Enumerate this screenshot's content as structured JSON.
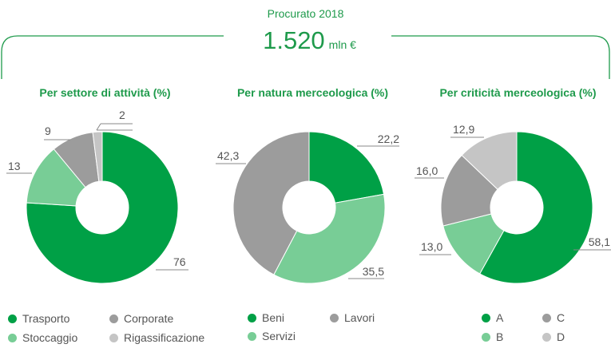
{
  "header": {
    "title": "Procurato 2018",
    "value": "1.520",
    "unit": "mln €"
  },
  "colors": {
    "accent": "#1e9a4b",
    "dark_green": "#00a046",
    "light_green": "#78cd96",
    "dark_gray": "#9c9c9c",
    "light_gray": "#c5c5c5"
  },
  "chart_data": [
    {
      "type": "pie",
      "title": "Per settore di attività (%)",
      "series": [
        {
          "name": "Trasporto",
          "value": 76,
          "label": "76",
          "color": "#00a046"
        },
        {
          "name": "Stoccaggio",
          "value": 13,
          "label": "13",
          "color": "#78cd96"
        },
        {
          "name": "Corporate",
          "value": 9,
          "label": "9",
          "color": "#9c9c9c"
        },
        {
          "name": "Rigassificazione",
          "value": 2,
          "label": "2",
          "color": "#c5c5c5"
        }
      ]
    },
    {
      "type": "pie",
      "title": "Per natura merceologica (%)",
      "series": [
        {
          "name": "Beni",
          "value": 22.2,
          "label": "22,2",
          "color": "#00a046"
        },
        {
          "name": "Servizi",
          "value": 35.5,
          "label": "35,5",
          "color": "#78cd96"
        },
        {
          "name": "Lavori",
          "value": 42.3,
          "label": "42,3",
          "color": "#9c9c9c"
        }
      ]
    },
    {
      "type": "pie",
      "title": "Per criticità merceologica (%)",
      "series": [
        {
          "name": "A",
          "value": 58.1,
          "label": "58,1",
          "color": "#00a046"
        },
        {
          "name": "B",
          "value": 13.0,
          "label": "13,0",
          "color": "#78cd96"
        },
        {
          "name": "C",
          "value": 16.0,
          "label": "16,0",
          "color": "#9c9c9c"
        },
        {
          "name": "D",
          "value": 12.9,
          "label": "12,9",
          "color": "#c5c5c5"
        }
      ]
    }
  ]
}
